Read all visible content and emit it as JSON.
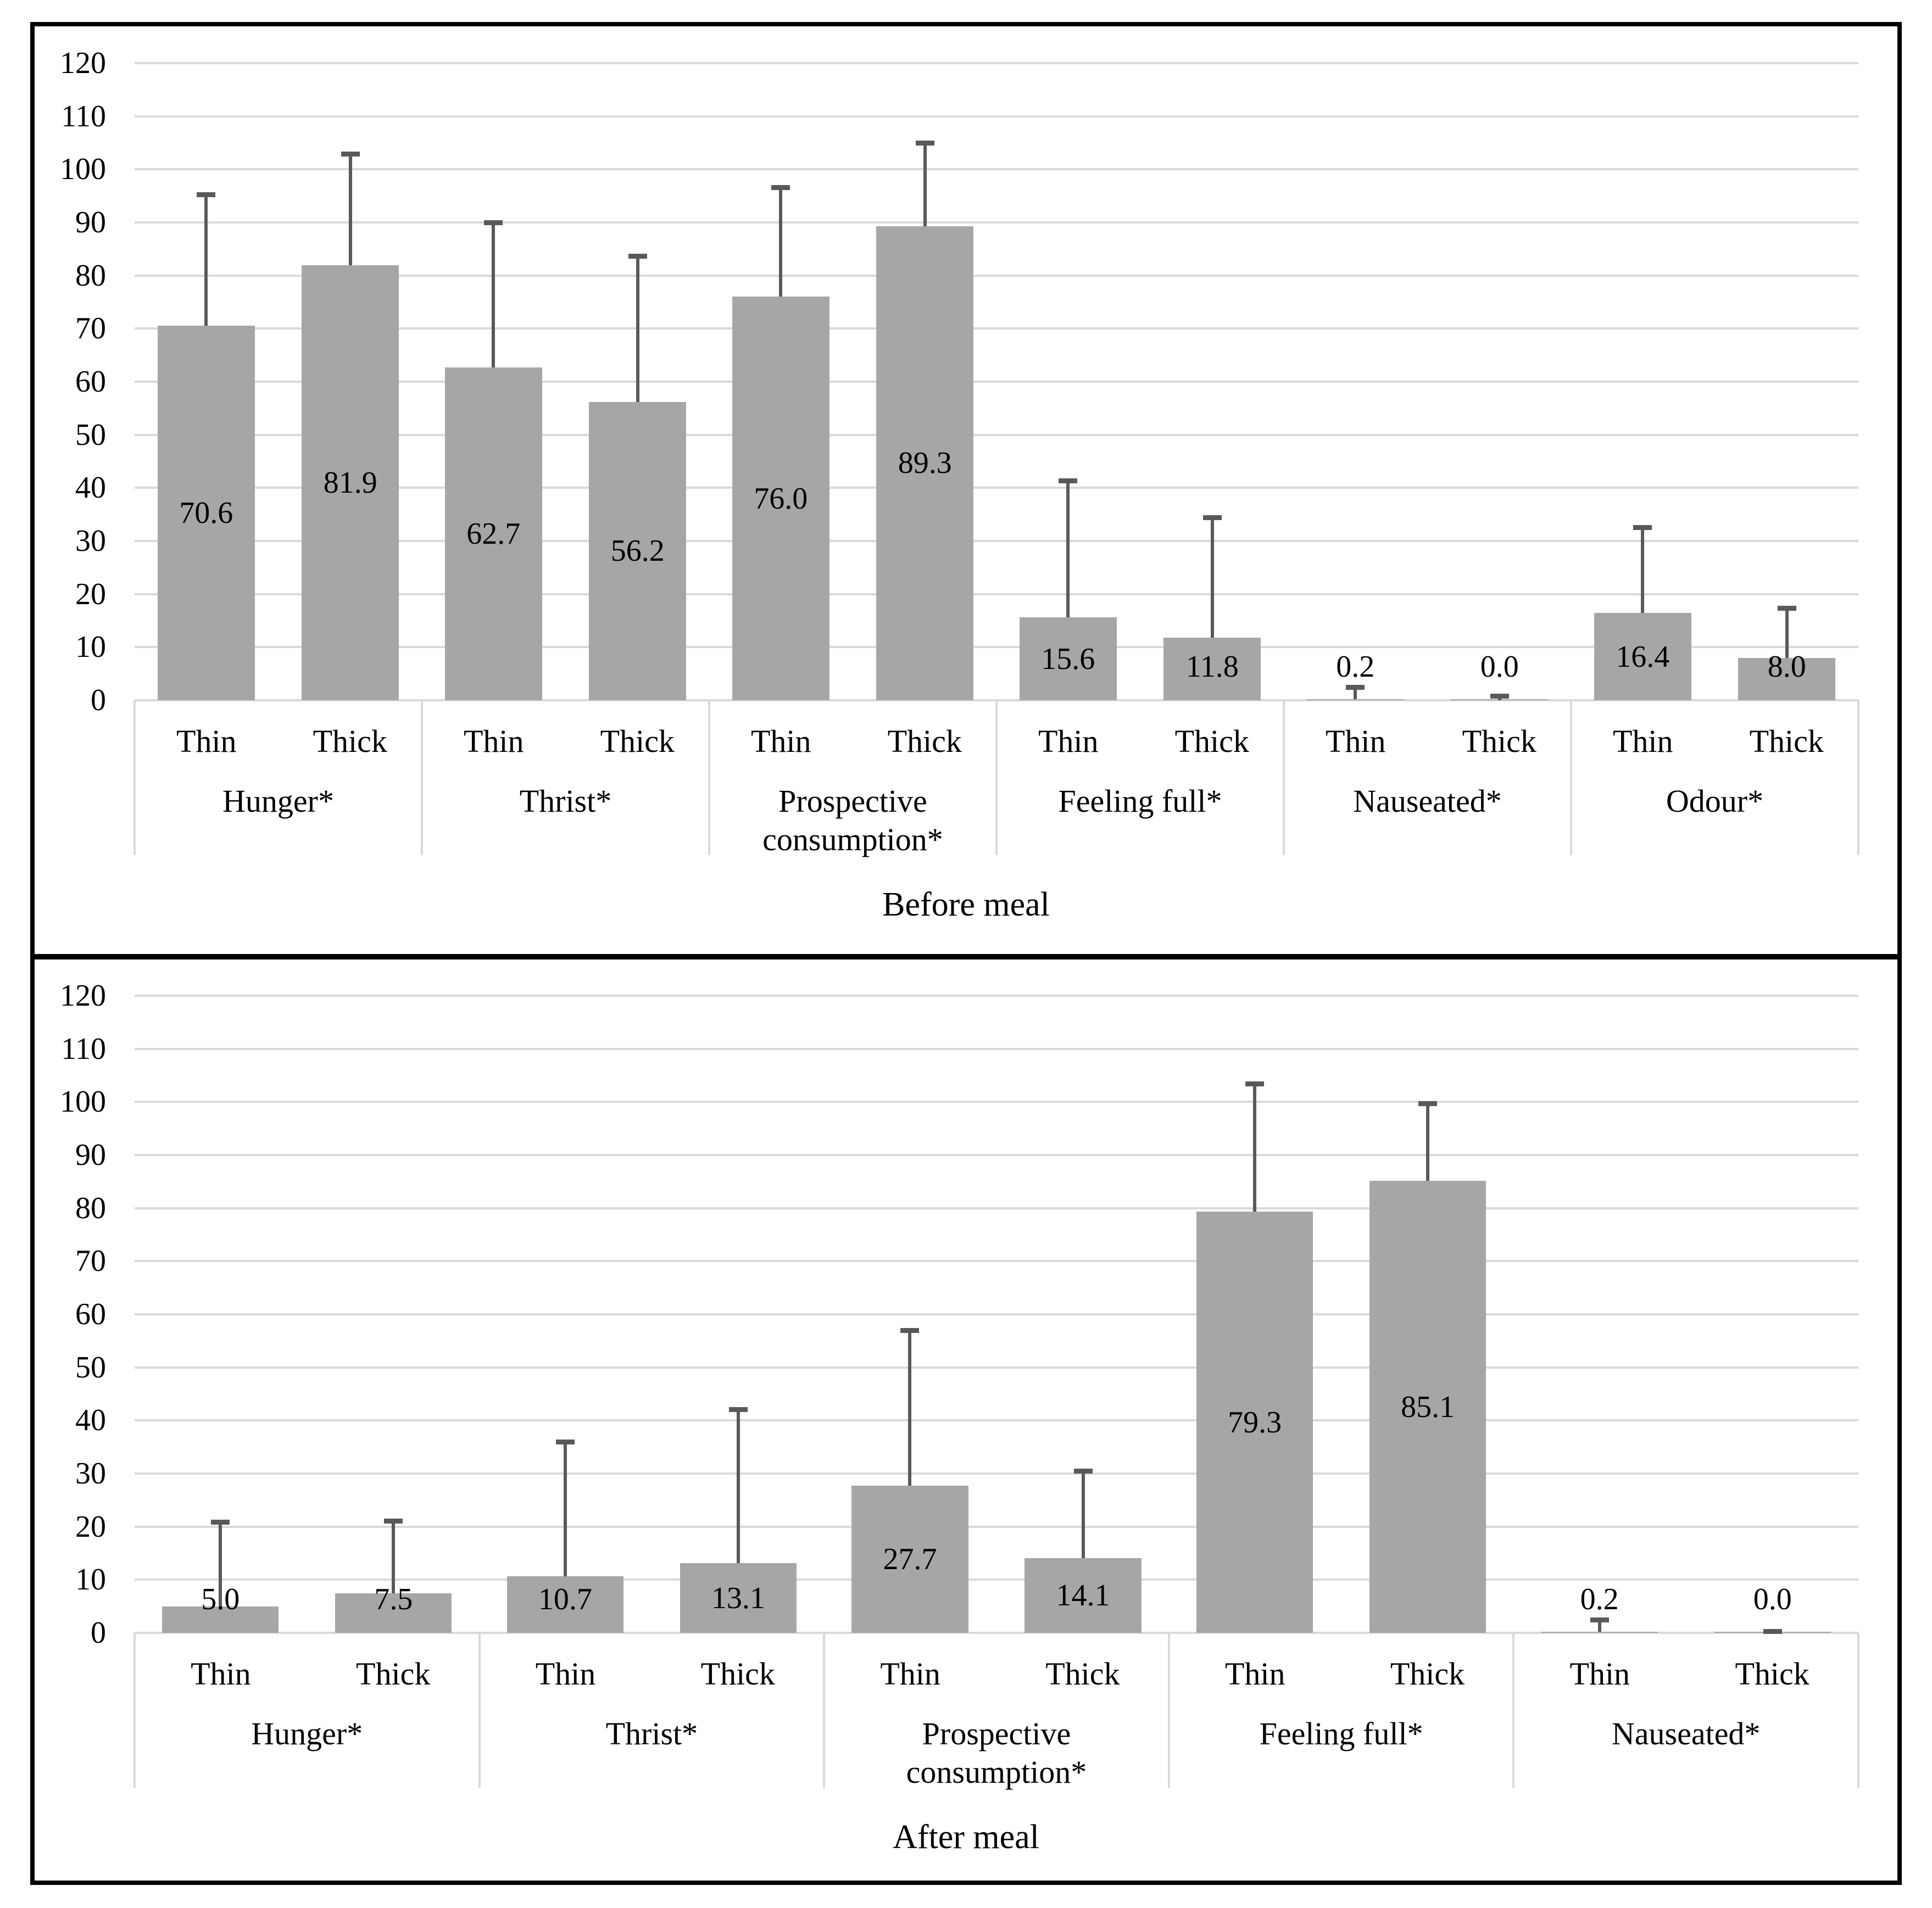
{
  "figure": {
    "bar_color": "#a6a6a6",
    "error_bar_color": "#595959",
    "gridline_color": "#d9d9d9",
    "separator_color": "#d9d9d9",
    "frame_border_color": "#000000",
    "series": [
      "Thin",
      "Thick"
    ]
  },
  "chart_data": [
    {
      "type": "bar",
      "title": "Before meal",
      "xlabel": "",
      "ylabel": "",
      "ylim": [
        0,
        120
      ],
      "ytick_step": 10,
      "grid": true,
      "legend_position": "none",
      "categories": [
        "Hunger*",
        "Thrist*",
        "Prospective consumption*",
        "Feeling full*",
        "Nauseated*",
        "Odour*"
      ],
      "groups": [
        {
          "label": "Hunger*",
          "bars": [
            {
              "series": "Thin",
              "value": 70.6,
              "error_top": 95.7
            },
            {
              "series": "Thick",
              "value": 81.9,
              "error_top": 103.3
            }
          ]
        },
        {
          "label": "Thrist*",
          "bars": [
            {
              "series": "Thin",
              "value": 62.7,
              "error_top": 90.4
            },
            {
              "series": "Thick",
              "value": 56.2,
              "error_top": 84.1
            }
          ]
        },
        {
          "label": "Prospective consumption*",
          "bars": [
            {
              "series": "Thin",
              "value": 76.0,
              "error_top": 97.0
            },
            {
              "series": "Thick",
              "value": 89.3,
              "error_top": 105.4
            }
          ]
        },
        {
          "label": "Feeling full*",
          "bars": [
            {
              "series": "Thin",
              "value": 15.6,
              "error_top": 41.8
            },
            {
              "series": "Thick",
              "value": 11.8,
              "error_top": 34.9
            }
          ]
        },
        {
          "label": "Nauseated*",
          "bars": [
            {
              "series": "Thin",
              "value": 0.2,
              "error_top": 2.9
            },
            {
              "series": "Thick",
              "value": 0.0,
              "error_top": 1.2
            }
          ]
        },
        {
          "label": "Odour*",
          "bars": [
            {
              "series": "Thin",
              "value": 16.4,
              "error_top": 33.0
            },
            {
              "series": "Thick",
              "value": 8.0,
              "error_top": 17.8
            }
          ]
        }
      ]
    },
    {
      "type": "bar",
      "title": "After meal",
      "xlabel": "",
      "ylabel": "",
      "ylim": [
        0,
        120
      ],
      "ytick_step": 10,
      "grid": true,
      "legend_position": "none",
      "categories": [
        "Hunger*",
        "Thrist*",
        "Prospective consumption*",
        "Feeling full*",
        "Nauseated*"
      ],
      "groups": [
        {
          "label": "Hunger*",
          "bars": [
            {
              "series": "Thin",
              "value": 5.0,
              "error_top": 21.3
            },
            {
              "series": "Thick",
              "value": 7.5,
              "error_top": 21.5
            }
          ]
        },
        {
          "label": "Thrist*",
          "bars": [
            {
              "series": "Thin",
              "value": 10.7,
              "error_top": 36.4
            },
            {
              "series": "Thick",
              "value": 13.1,
              "error_top": 42.5
            }
          ]
        },
        {
          "label": "Prospective consumption*",
          "bars": [
            {
              "series": "Thin",
              "value": 27.7,
              "error_top": 57.4
            },
            {
              "series": "Thick",
              "value": 14.1,
              "error_top": 30.9
            }
          ]
        },
        {
          "label": "Feeling full*",
          "bars": [
            {
              "series": "Thin",
              "value": 79.3,
              "error_top": 103.9
            },
            {
              "series": "Thick",
              "value": 85.1,
              "error_top": 100.1
            }
          ]
        },
        {
          "label": "Nauseated*",
          "bars": [
            {
              "series": "Thin",
              "value": 0.2,
              "error_top": 2.9
            },
            {
              "series": "Thick",
              "value": 0.0,
              "error_top": 0.7
            }
          ]
        }
      ]
    }
  ]
}
